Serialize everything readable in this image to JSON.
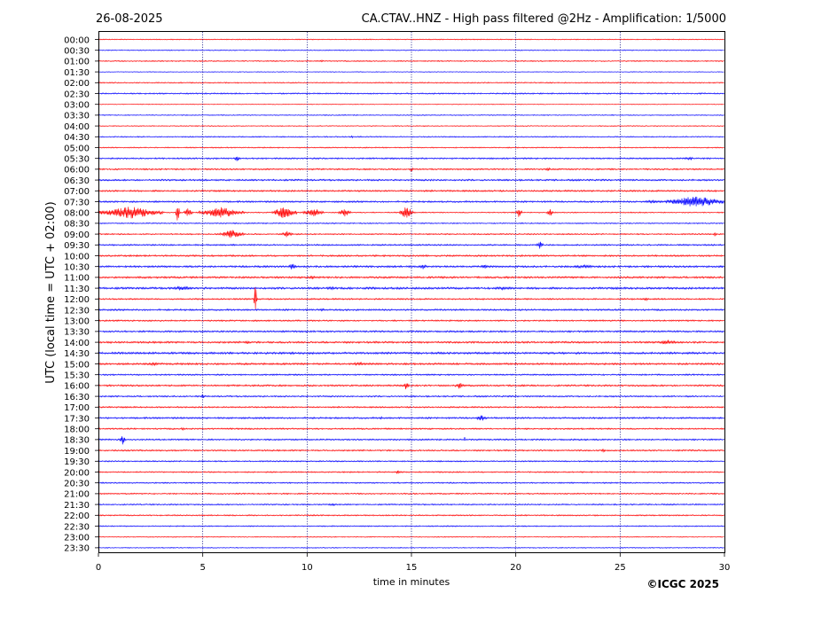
{
  "header": {
    "date": "26-08-2025",
    "title": "CA.CTAV..HNZ - High pass filtered @2Hz - Amplification: 1/5000"
  },
  "footer": {
    "copyright": "©ICGC 2025"
  },
  "colors": {
    "odd_trace": "#ff0000",
    "even_trace": "#0000ff",
    "grid": "#000080"
  },
  "chart_data": {
    "type": "line",
    "subtype": "helicorder",
    "xlabel": "time in minutes",
    "ylabel": "UTC (local time = UTC + 02:00)",
    "xlim": [
      0,
      30
    ],
    "x_ticks": [
      0,
      5,
      10,
      15,
      20,
      25,
      30
    ],
    "x_gridlines": [
      5,
      10,
      15,
      20,
      25
    ],
    "rows": [
      "00:00",
      "00:30",
      "01:00",
      "01:30",
      "02:00",
      "02:30",
      "03:00",
      "03:30",
      "04:00",
      "04:30",
      "05:00",
      "05:30",
      "06:00",
      "06:30",
      "07:00",
      "07:30",
      "08:00",
      "08:30",
      "09:00",
      "09:30",
      "10:00",
      "10:30",
      "11:00",
      "11:30",
      "12:00",
      "12:30",
      "13:00",
      "13:30",
      "14:00",
      "14:30",
      "15:00",
      "15:30",
      "16:00",
      "16:30",
      "17:00",
      "17:30",
      "18:00",
      "18:30",
      "19:00",
      "19:30",
      "20:00",
      "20:30",
      "21:00",
      "21:30",
      "22:00",
      "22:30",
      "23:00",
      "23:30"
    ],
    "row_colors": [
      "red",
      "blue"
    ],
    "noise_level": [
      0.5,
      0.5,
      0.6,
      0.4,
      0.6,
      0.7,
      0.4,
      0.5,
      0.5,
      0.6,
      0.6,
      0.8,
      0.8,
      0.9,
      0.9,
      0.9,
      0.6,
      0.6,
      0.7,
      0.8,
      0.9,
      1.0,
      1.0,
      1.1,
      0.8,
      0.9,
      0.8,
      0.9,
      1.0,
      1.1,
      1.0,
      0.8,
      0.9,
      0.8,
      0.8,
      0.9,
      0.8,
      0.8,
      0.8,
      0.7,
      0.7,
      0.7,
      0.7,
      0.7,
      0.7,
      0.6,
      0.5,
      0.5
    ],
    "bursts": [
      {
        "row": 2,
        "start": 10.6,
        "end": 10.8,
        "amp": 2
      },
      {
        "row": 9,
        "start": 12.1,
        "end": 12.2,
        "amp": 2
      },
      {
        "row": 11,
        "start": 6.5,
        "end": 6.8,
        "amp": 4
      },
      {
        "row": 11,
        "start": 28.0,
        "end": 28.6,
        "amp": 2
      },
      {
        "row": 12,
        "start": 14.9,
        "end": 15.1,
        "amp": 3
      },
      {
        "row": 12,
        "start": 21.4,
        "end": 21.7,
        "amp": 2
      },
      {
        "row": 15,
        "start": 26.0,
        "end": 27.2,
        "amp": 2
      },
      {
        "row": 15,
        "start": 27.2,
        "end": 30.0,
        "amp": 7
      },
      {
        "row": 16,
        "start": 0.0,
        "end": 3.1,
        "amp": 7
      },
      {
        "row": 16,
        "start": 3.7,
        "end": 3.9,
        "amp": 12
      },
      {
        "row": 16,
        "start": 4.1,
        "end": 4.5,
        "amp": 5
      },
      {
        "row": 16,
        "start": 4.8,
        "end": 7.0,
        "amp": 6
      },
      {
        "row": 16,
        "start": 8.3,
        "end": 9.5,
        "amp": 7
      },
      {
        "row": 16,
        "start": 9.8,
        "end": 10.8,
        "amp": 5
      },
      {
        "row": 16,
        "start": 11.5,
        "end": 12.1,
        "amp": 6
      },
      {
        "row": 16,
        "start": 14.4,
        "end": 15.1,
        "amp": 7
      },
      {
        "row": 16,
        "start": 20.0,
        "end": 20.3,
        "amp": 6
      },
      {
        "row": 16,
        "start": 21.5,
        "end": 21.8,
        "amp": 5
      },
      {
        "row": 18,
        "start": 5.8,
        "end": 7.0,
        "amp": 5
      },
      {
        "row": 18,
        "start": 8.8,
        "end": 9.3,
        "amp": 4
      },
      {
        "row": 18,
        "start": 29.5,
        "end": 29.6,
        "amp": 4
      },
      {
        "row": 19,
        "start": 21.0,
        "end": 21.3,
        "amp": 5
      },
      {
        "row": 21,
        "start": 9.1,
        "end": 9.5,
        "amp": 4
      },
      {
        "row": 21,
        "start": 15.3,
        "end": 15.8,
        "amp": 3
      },
      {
        "row": 21,
        "start": 18.3,
        "end": 18.7,
        "amp": 3
      },
      {
        "row": 21,
        "start": 22.5,
        "end": 24.0,
        "amp": 2
      },
      {
        "row": 22,
        "start": 10.1,
        "end": 10.4,
        "amp": 3
      },
      {
        "row": 23,
        "start": 3.5,
        "end": 4.5,
        "amp": 3
      },
      {
        "row": 23,
        "start": 10.8,
        "end": 11.5,
        "amp": 2
      },
      {
        "row": 23,
        "start": 18.8,
        "end": 20.0,
        "amp": 2
      },
      {
        "row": 24,
        "start": 7.45,
        "end": 7.6,
        "amp": 20
      },
      {
        "row": 24,
        "start": 26.1,
        "end": 26.4,
        "amp": 2
      },
      {
        "row": 25,
        "start": 10.6,
        "end": 10.9,
        "amp": 2
      },
      {
        "row": 28,
        "start": 7.0,
        "end": 7.3,
        "amp": 3
      },
      {
        "row": 28,
        "start": 26.8,
        "end": 27.8,
        "amp": 3
      },
      {
        "row": 30,
        "start": 2.3,
        "end": 3.0,
        "amp": 2
      },
      {
        "row": 30,
        "start": 12.0,
        "end": 13.0,
        "amp": 2
      },
      {
        "row": 32,
        "start": 14.6,
        "end": 14.9,
        "amp": 5
      },
      {
        "row": 32,
        "start": 17.1,
        "end": 17.5,
        "amp": 4
      },
      {
        "row": 33,
        "start": 4.9,
        "end": 5.1,
        "amp": 3
      },
      {
        "row": 35,
        "start": 18.1,
        "end": 18.6,
        "amp": 4
      },
      {
        "row": 35,
        "start": 13.5,
        "end": 13.6,
        "amp": 3
      },
      {
        "row": 36,
        "start": 3.9,
        "end": 4.2,
        "amp": 2
      },
      {
        "row": 37,
        "start": 1.0,
        "end": 1.3,
        "amp": 6
      },
      {
        "row": 37,
        "start": 17.5,
        "end": 17.6,
        "amp": 3
      },
      {
        "row": 38,
        "start": 24.1,
        "end": 24.3,
        "amp": 2
      },
      {
        "row": 40,
        "start": 14.2,
        "end": 14.5,
        "amp": 2
      },
      {
        "row": 43,
        "start": 11.0,
        "end": 11.4,
        "amp": 2
      }
    ]
  }
}
